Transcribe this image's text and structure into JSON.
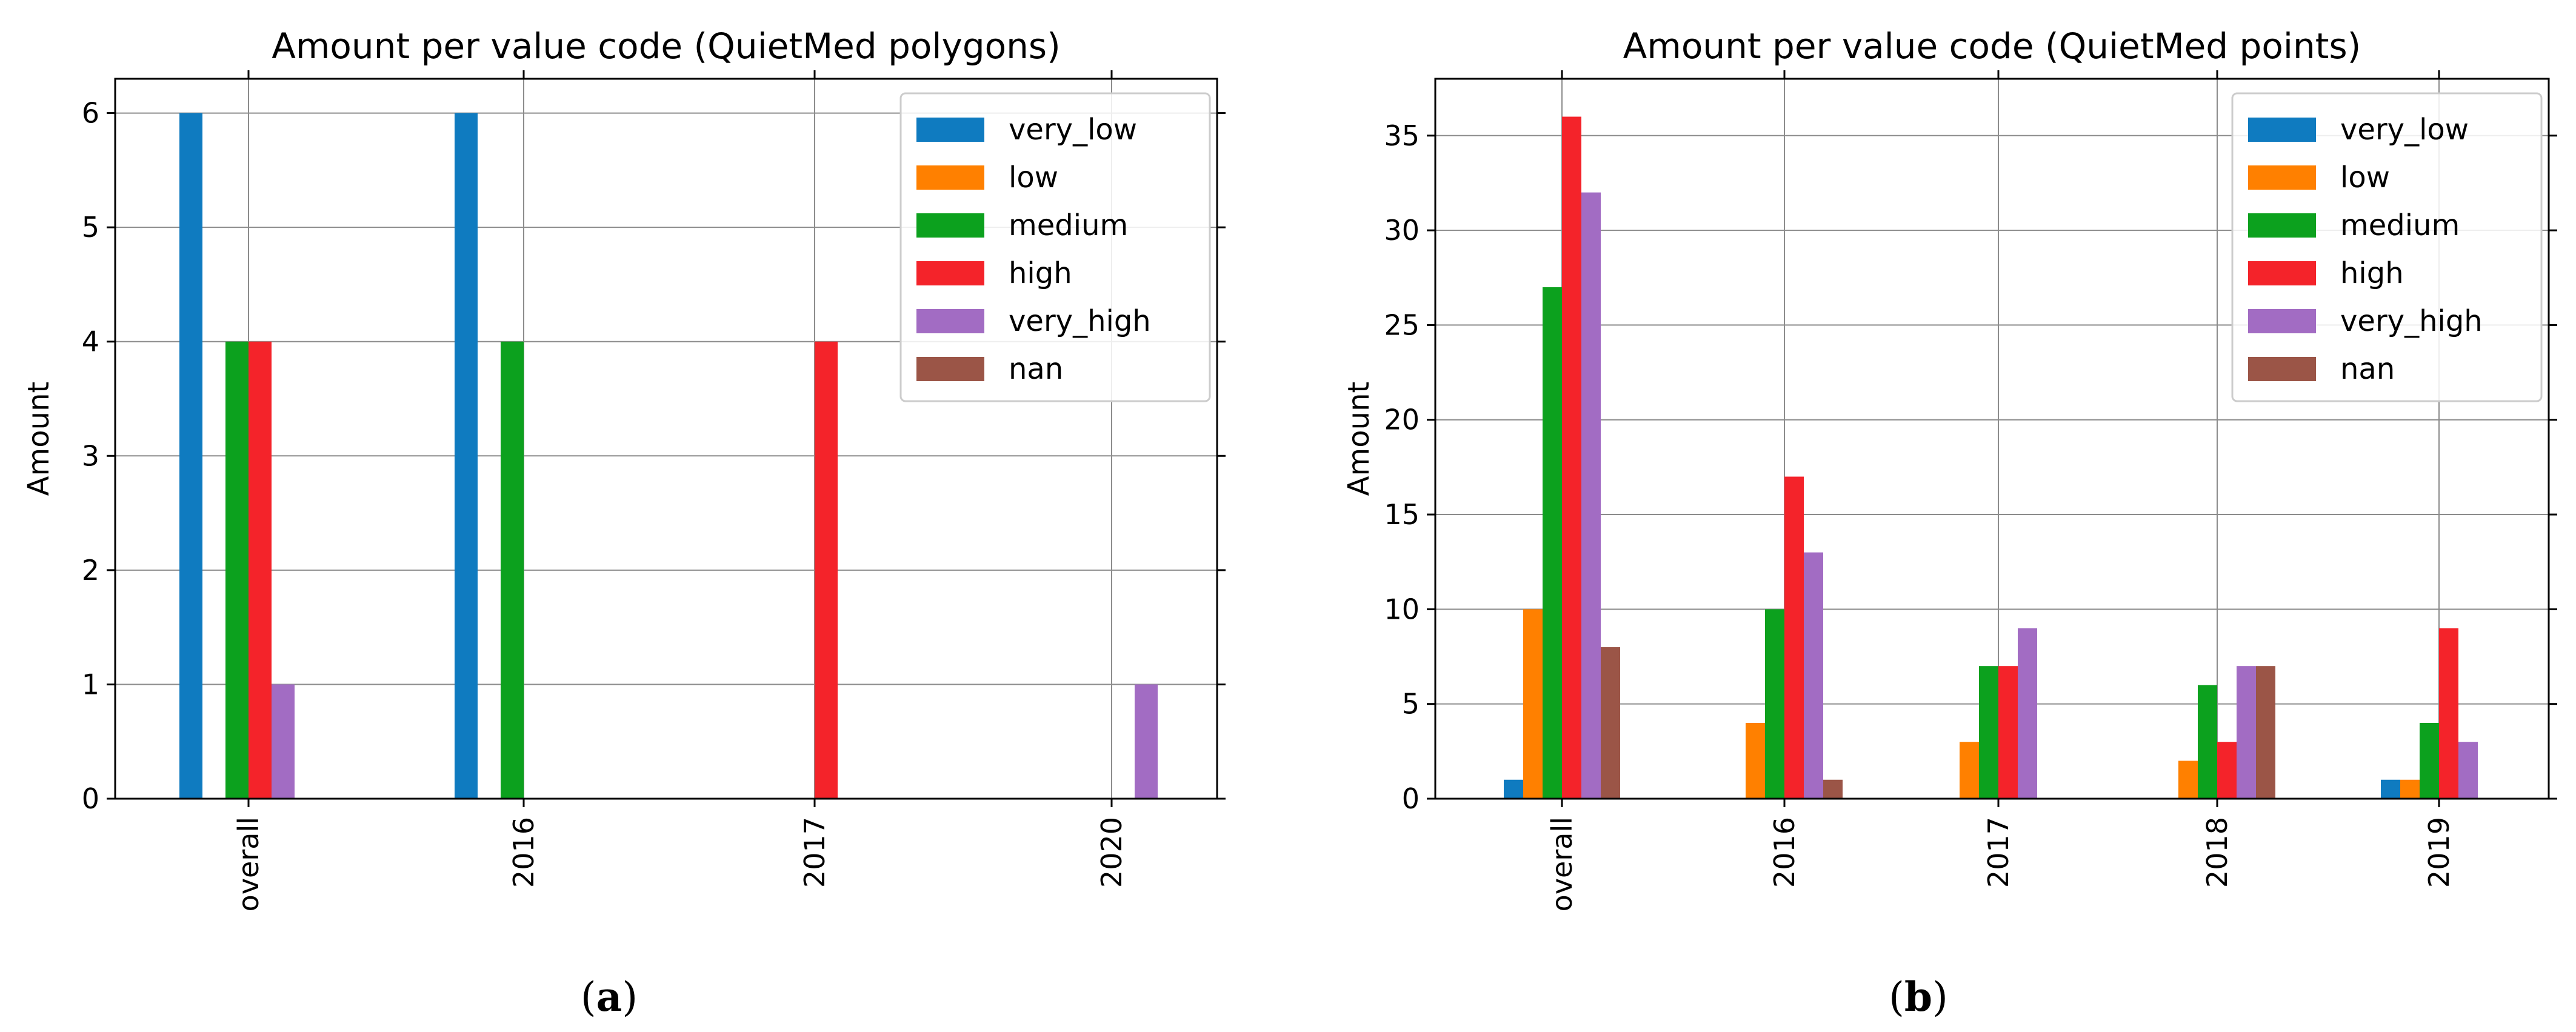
{
  "colors": {
    "very_low": "#1f77b4",
    "low": "#ff7f0e",
    "medium": "#2ca02c",
    "high": "#d62728",
    "very_high": "#9467bd",
    "nan": "#8c564b"
  },
  "chart_data": [
    {
      "type": "bar",
      "panel_label": "(a)",
      "panel_letter": "a",
      "title": "Amount per value code (QuietMed polygons)",
      "xlabel": "",
      "ylabel": "Amount",
      "ylim": [
        0,
        6.3
      ],
      "yticks": [
        0,
        1,
        2,
        3,
        4,
        5,
        6
      ],
      "grid": true,
      "legend_position": "top-right",
      "categories": [
        "overall",
        "2016",
        "2017",
        "2020"
      ],
      "series": [
        {
          "name": "very_low",
          "color": "#0f7bc0",
          "values": [
            6,
            6,
            0,
            0
          ]
        },
        {
          "name": "low",
          "color": "#ff8000",
          "values": [
            0,
            0,
            0,
            0
          ]
        },
        {
          "name": "medium",
          "color": "#0ca11e",
          "values": [
            4,
            4,
            0,
            0
          ]
        },
        {
          "name": "high",
          "color": "#f4232a",
          "values": [
            4,
            0,
            4,
            0
          ]
        },
        {
          "name": "very_high",
          "color": "#a26cc3",
          "values": [
            1,
            0,
            0,
            1
          ]
        },
        {
          "name": "nan",
          "color": "#9b5547",
          "values": [
            0,
            0,
            0,
            0
          ]
        }
      ]
    },
    {
      "type": "bar",
      "panel_label": "(b)",
      "panel_letter": "b",
      "title": "Amount per value code (QuietMed points)",
      "xlabel": "",
      "ylabel": "Amount",
      "ylim": [
        0,
        38
      ],
      "yticks": [
        0,
        5,
        10,
        15,
        20,
        25,
        30,
        35
      ],
      "grid": true,
      "legend_position": "top-right",
      "categories": [
        "overall",
        "2016",
        "2017",
        "2018",
        "2019"
      ],
      "series": [
        {
          "name": "very_low",
          "color": "#0f7bc0",
          "values": [
            1,
            0,
            0,
            0,
            1
          ]
        },
        {
          "name": "low",
          "color": "#ff8000",
          "values": [
            10,
            4,
            3,
            2,
            1
          ]
        },
        {
          "name": "medium",
          "color": "#0ca11e",
          "values": [
            27,
            10,
            7,
            6,
            4
          ]
        },
        {
          "name": "high",
          "color": "#f4232a",
          "values": [
            36,
            17,
            7,
            3,
            9
          ]
        },
        {
          "name": "very_high",
          "color": "#a26cc3",
          "values": [
            32,
            13,
            9,
            7,
            3
          ]
        },
        {
          "name": "nan",
          "color": "#9b5547",
          "values": [
            8,
            1,
            0,
            7,
            0
          ]
        }
      ]
    }
  ]
}
